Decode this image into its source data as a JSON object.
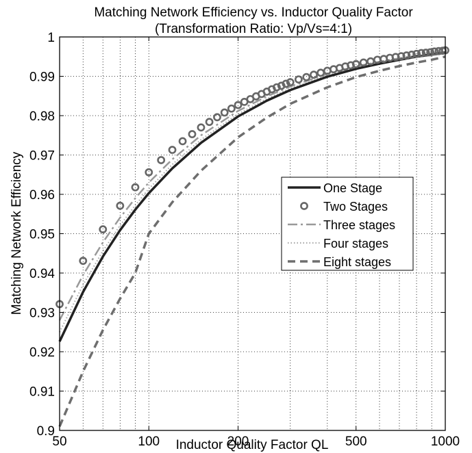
{
  "chart_data": {
    "type": "line",
    "title": "Matching Network Efficiency vs. Inductor Quality Factor",
    "subtitle": "(Transformation Ratio: Vp/Vs=4:1)",
    "xlabel": "Inductor Quality Factor QL",
    "ylabel": "Matching Network Efficiency",
    "x_scale": "log",
    "xlim": [
      50,
      1000
    ],
    "ylim": [
      0.9,
      1.0
    ],
    "x_ticks": [
      50,
      100,
      200,
      500,
      1000
    ],
    "x_tick_labels": [
      "50",
      "100",
      "200",
      "500",
      "1000"
    ],
    "y_ticks": [
      0.9,
      0.91,
      0.92,
      0.93,
      0.94,
      0.95,
      0.96,
      0.97,
      0.98,
      0.99,
      1.0
    ],
    "y_tick_labels": [
      "0.9",
      "0.91",
      "0.92",
      "0.93",
      "0.94",
      "0.95",
      "0.96",
      "0.97",
      "0.98",
      "0.99",
      "1"
    ],
    "grid": true,
    "legend_position": "right-middle",
    "series": [
      {
        "name": "One Stage",
        "style": "solid",
        "color": "#222222",
        "x": [
          50,
          60,
          70,
          80,
          90,
          100,
          120,
          150,
          200,
          250,
          300,
          400,
          500,
          600,
          700,
          800,
          900,
          1000
        ],
        "y": [
          0.9226,
          0.9352,
          0.9442,
          0.9509,
          0.9561,
          0.9603,
          0.9666,
          0.9731,
          0.9798,
          0.9838,
          0.9865,
          0.9899,
          0.9919,
          0.9932,
          0.9942,
          0.995,
          0.9955,
          0.996
        ]
      },
      {
        "name": "Two Stages",
        "style": "circle-markers",
        "color": "#666666",
        "x": [
          50,
          60,
          70,
          80,
          90,
          100,
          110,
          120,
          130,
          140,
          150,
          160,
          170,
          180,
          190,
          200,
          210,
          220,
          230,
          240,
          250,
          260,
          270,
          280,
          290,
          300,
          320,
          340,
          360,
          380,
          400,
          420,
          440,
          460,
          480,
          500,
          530,
          560,
          590,
          620,
          650,
          680,
          710,
          740,
          770,
          800,
          830,
          860,
          890,
          920,
          950,
          980,
          1000
        ],
        "y": [
          0.9321,
          0.9431,
          0.9511,
          0.9571,
          0.9618,
          0.9656,
          0.9687,
          0.9713,
          0.9735,
          0.9753,
          0.977,
          0.9784,
          0.9796,
          0.9808,
          0.9818,
          0.9827,
          0.9835,
          0.9842,
          0.9849,
          0.9855,
          0.9861,
          0.9867,
          0.9872,
          0.9876,
          0.9881,
          0.9885,
          0.9892,
          0.9898,
          0.9904,
          0.9909,
          0.9914,
          0.9918,
          0.9921,
          0.9925,
          0.9928,
          0.9931,
          0.9935,
          0.9938,
          0.9942,
          0.9944,
          0.9947,
          0.9949,
          0.9951,
          0.9953,
          0.9955,
          0.9957,
          0.9959,
          0.996,
          0.9961,
          0.9963,
          0.9964,
          0.9965,
          0.9966
        ]
      },
      {
        "name": "Three stages",
        "style": "dash-dot",
        "color": "#999999",
        "x": [
          50,
          60,
          70,
          80,
          90,
          100,
          120,
          150,
          200,
          250,
          300,
          400,
          500,
          600,
          700,
          800,
          900,
          1000
        ],
        "y": [
          0.928,
          0.9395,
          0.9478,
          0.9541,
          0.959,
          0.963,
          0.9689,
          0.975,
          0.9812,
          0.9849,
          0.9874,
          0.9906,
          0.9925,
          0.9937,
          0.9946,
          0.9953,
          0.9958,
          0.9962
        ]
      },
      {
        "name": "Four stages",
        "style": "dotted",
        "color": "#aaaaaa",
        "x": [
          50,
          60,
          70,
          80,
          90,
          100,
          120,
          150,
          200,
          250,
          300,
          400,
          500,
          600,
          700,
          800,
          900,
          1000
        ],
        "y": [
          0.925,
          0.937,
          0.9456,
          0.9521,
          0.9572,
          0.9614,
          0.9676,
          0.9739,
          0.9804,
          0.9843,
          0.9869,
          0.9902,
          0.9921,
          0.9934,
          0.9944,
          0.9951,
          0.9956,
          0.9961
        ]
      },
      {
        "name": "Eight stages",
        "style": "dashed",
        "color": "#6e6e6e",
        "x": [
          50,
          60,
          70,
          80,
          90,
          100,
          120,
          150,
          200,
          250,
          300,
          400,
          500,
          600,
          700,
          800,
          900,
          1000
        ],
        "y": [
          0.901,
          0.915,
          0.9255,
          0.9335,
          0.94,
          0.95,
          0.958,
          0.966,
          0.9745,
          0.9795,
          0.983,
          0.9872,
          0.9898,
          0.9914,
          0.9926,
          0.9935,
          0.9942,
          0.995
        ]
      }
    ]
  }
}
